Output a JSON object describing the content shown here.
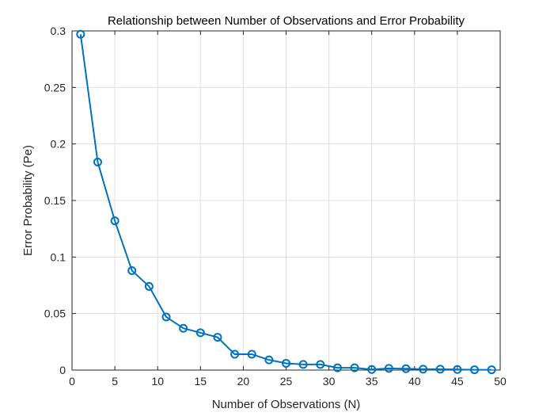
{
  "chart_data": {
    "type": "line",
    "title": "Relationship between Number of Observations and Error Probability",
    "xlabel": "Number of Observations (N)",
    "ylabel": "Error Probability (Pe)",
    "xlim": [
      0,
      50
    ],
    "ylim": [
      0,
      0.3
    ],
    "xticks": [
      0,
      5,
      10,
      15,
      20,
      25,
      30,
      35,
      40,
      45,
      50
    ],
    "xtick_labels": [
      "0",
      "5",
      "10",
      "15",
      "20",
      "25",
      "30",
      "35",
      "40",
      "45",
      "50"
    ],
    "yticks": [
      0,
      0.05,
      0.1,
      0.15,
      0.2,
      0.25,
      0.3
    ],
    "ytick_labels": [
      "0",
      "0.05",
      "0.1",
      "0.15",
      "0.2",
      "0.25",
      "0.3"
    ],
    "grid": true,
    "line_color": "#0072BD",
    "marker": "circle",
    "x": [
      1,
      3,
      5,
      7,
      9,
      11,
      13,
      15,
      17,
      19,
      21,
      23,
      25,
      27,
      29,
      31,
      33,
      35,
      37,
      39,
      41,
      43,
      45,
      47,
      49
    ],
    "y": [
      0.297,
      0.184,
      0.132,
      0.088,
      0.074,
      0.047,
      0.037,
      0.033,
      0.029,
      0.014,
      0.014,
      0.009,
      0.006,
      0.005,
      0.005,
      0.002,
      0.002,
      0.0005,
      0.0015,
      0.0012,
      0.0008,
      0.0008,
      0.0005,
      0.0003,
      0.0003
    ]
  }
}
